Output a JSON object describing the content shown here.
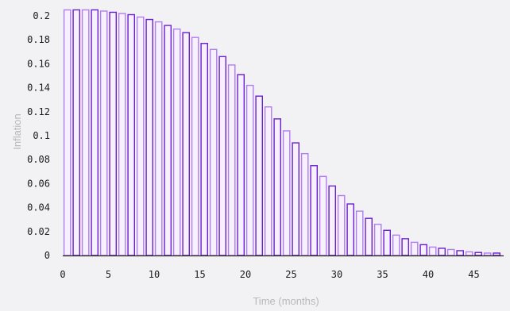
{
  "chart_data": {
    "type": "bar",
    "xlabel": "Time (months)",
    "ylabel": "Inflation",
    "ylim": [
      0,
      0.2
    ],
    "xlim": [
      0,
      48
    ],
    "x_ticks": [
      "0",
      "5",
      "10",
      "15",
      "20",
      "25",
      "30",
      "35",
      "40",
      "45"
    ],
    "y_ticks": [
      "0",
      "0.02",
      "0.04",
      "0.06",
      "0.08",
      "0.1",
      "0.12",
      "0.14",
      "0.16",
      "0.18",
      "0.2"
    ],
    "grid": false,
    "legend": "none",
    "x": [
      0,
      1,
      2,
      3,
      4,
      5,
      6,
      7,
      8,
      9,
      10,
      11,
      12,
      13,
      14,
      15,
      16,
      17,
      18,
      19,
      20,
      21,
      22,
      23,
      24,
      25,
      26,
      27,
      28,
      29,
      30,
      31,
      32,
      33,
      34,
      35,
      36,
      37,
      38,
      39,
      40,
      41,
      42,
      43,
      44,
      45,
      46,
      47
    ],
    "values": [
      0.205,
      0.205,
      0.205,
      0.205,
      0.204,
      0.203,
      0.202,
      0.201,
      0.199,
      0.197,
      0.195,
      0.192,
      0.189,
      0.186,
      0.182,
      0.177,
      0.172,
      0.166,
      0.159,
      0.151,
      0.142,
      0.133,
      0.124,
      0.114,
      0.104,
      0.094,
      0.085,
      0.075,
      0.066,
      0.058,
      0.05,
      0.043,
      0.037,
      0.031,
      0.026,
      0.021,
      0.017,
      0.014,
      0.011,
      0.009,
      0.007,
      0.006,
      0.005,
      0.004,
      0.003,
      0.0025,
      0.002,
      0.002
    ],
    "colors": {
      "bar_fill": "#f6f1fd",
      "bar_stroke_light": "#b07ef0",
      "bar_stroke_dark": "#6a1fd0",
      "axis": "#222222",
      "tick_text": "#1a1a1a",
      "axis_title": "#b8b8bc"
    }
  }
}
